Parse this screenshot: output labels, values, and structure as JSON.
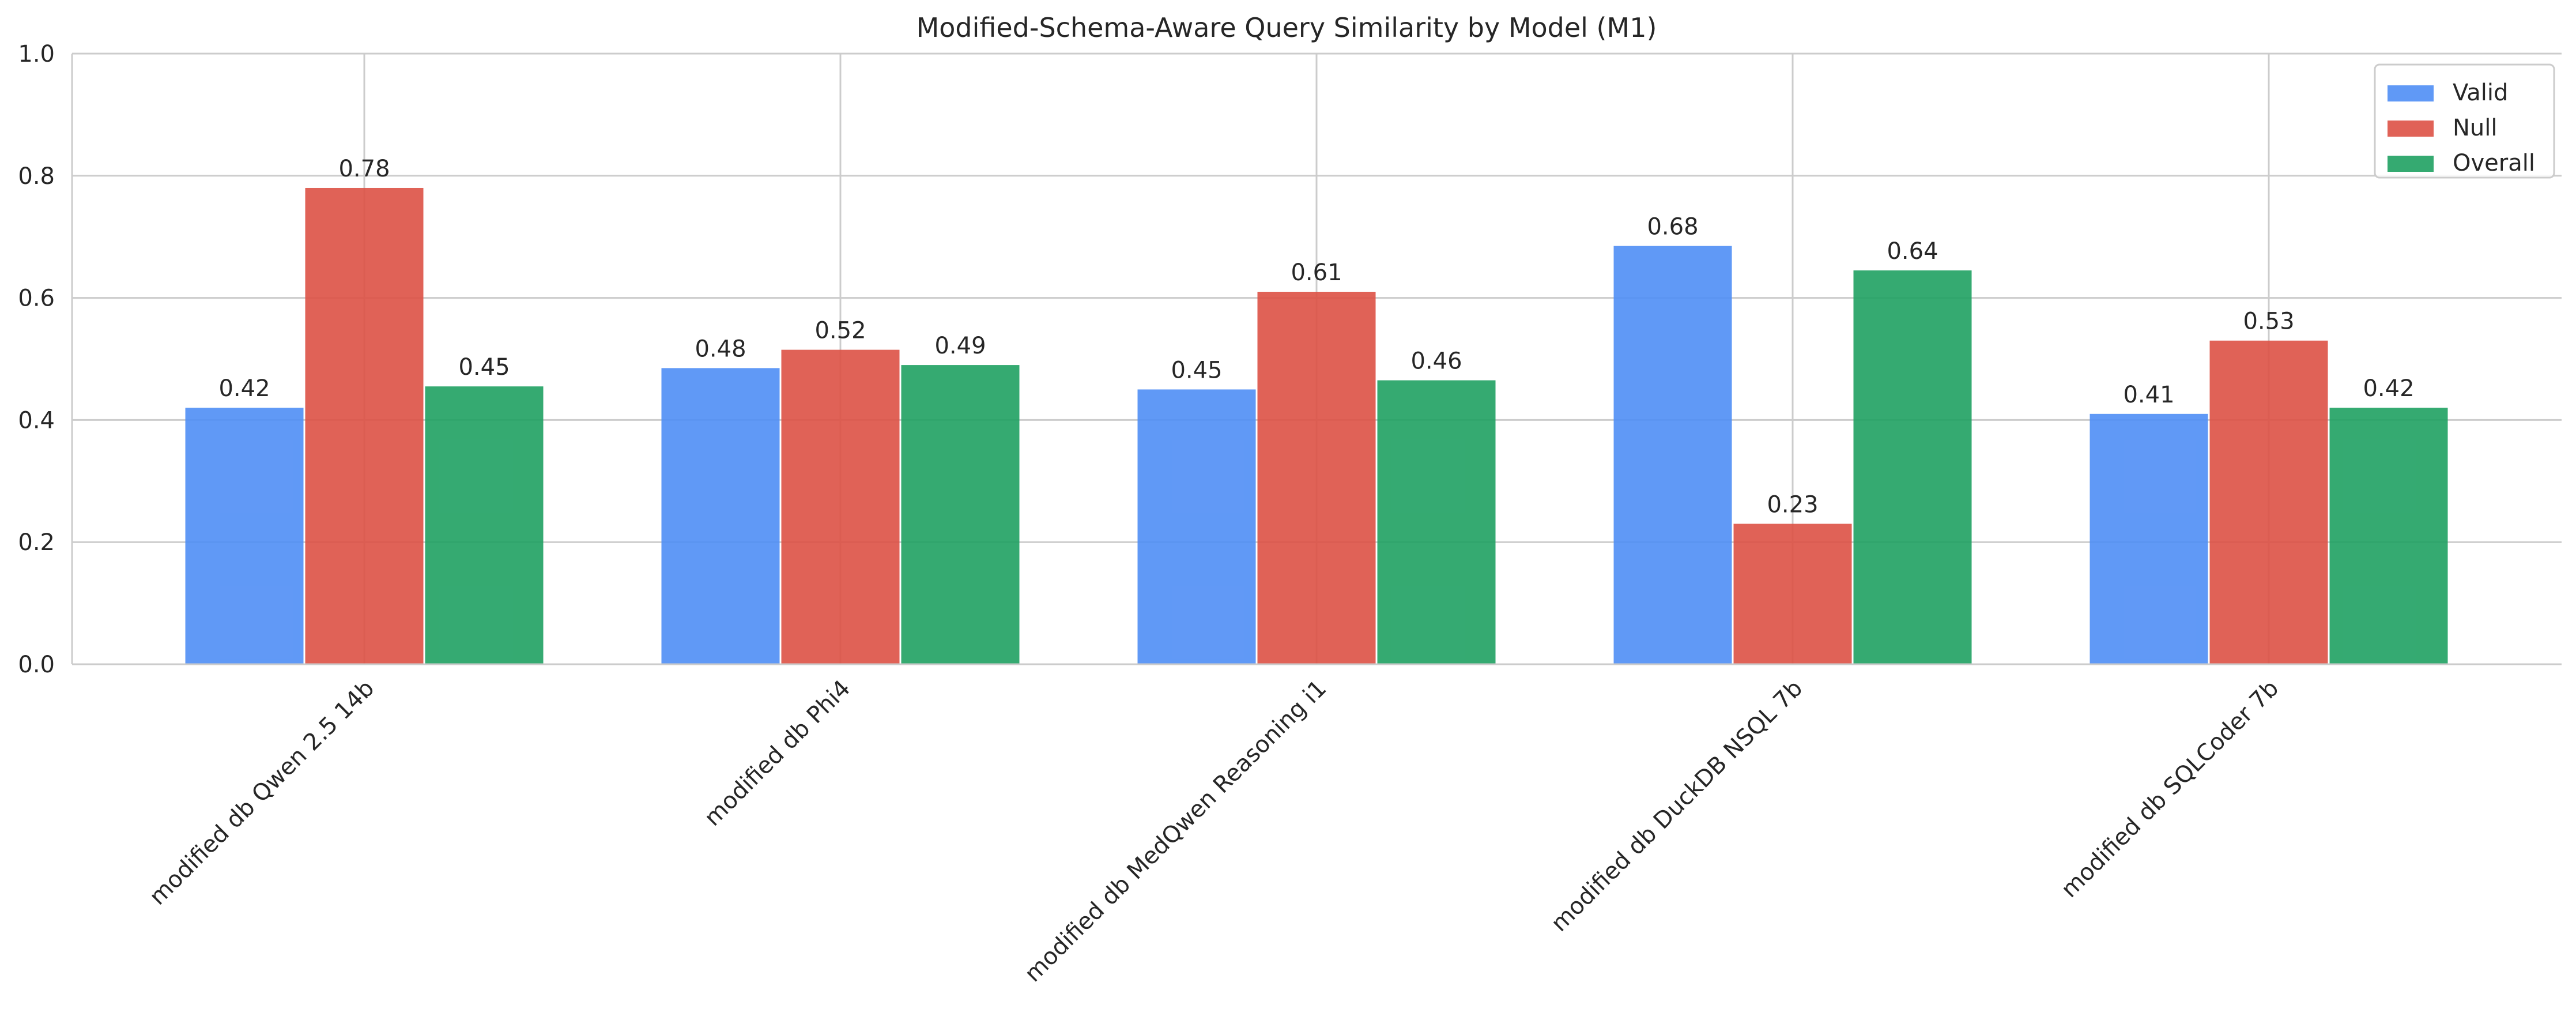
{
  "chart_data": {
    "type": "bar",
    "title": "Modified-Schema-Aware Query Similarity by Model (M1)",
    "xlabel": "",
    "ylabel": "",
    "ylim": [
      0,
      1.0
    ],
    "yticks": [
      "0.0",
      "0.2",
      "0.4",
      "0.6",
      "0.8",
      "1.0"
    ],
    "grid": true,
    "legend_position": "top-right",
    "categories": [
      "modified db Qwen 2.5 14b",
      "modified db Phi4",
      "modified db MedQwen Reasoning i1",
      "modified db DuckDB NSQL 7b",
      "modified db SQLCoder 7b"
    ],
    "series": [
      {
        "name": "Valid",
        "color": "#4f8ef5",
        "values": [
          0.42,
          0.485,
          0.45,
          0.685,
          0.41
        ],
        "labels": [
          "0.42",
          "0.48",
          "0.45",
          "0.68",
          "0.41"
        ]
      },
      {
        "name": "Null",
        "color": "#dd5145",
        "values": [
          0.78,
          0.515,
          0.61,
          0.23,
          0.53
        ],
        "labels": [
          "0.78",
          "0.52",
          "0.61",
          "0.23",
          "0.53"
        ]
      },
      {
        "name": "Overall",
        "color": "#1fa162",
        "values": [
          0.455,
          0.49,
          0.465,
          0.645,
          0.42
        ],
        "labels": [
          "0.45",
          "0.49",
          "0.46",
          "0.64",
          "0.42"
        ]
      }
    ]
  }
}
